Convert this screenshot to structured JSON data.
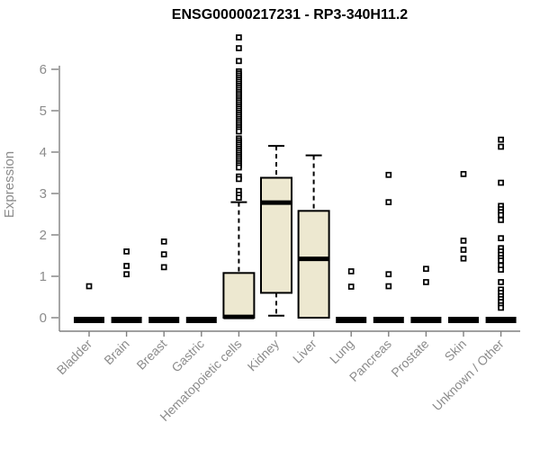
{
  "chart_data": {
    "type": "box",
    "title": "ENSG00000217231 - RP3-340H11.2",
    "ylabel": "Expression",
    "xlabel": "",
    "yticks": [
      0,
      1,
      2,
      3,
      4,
      5,
      6
    ],
    "ylim": [
      0,
      6.9
    ],
    "grid": false,
    "legend": "none",
    "colors": {
      "box_fill": "#ede8d0",
      "box_stroke": "#000000",
      "median": "#000000",
      "outlier_stroke": "#000000",
      "outlier_fill": "#ffffff",
      "axis": "#808080",
      "tick_text": "#8c8c8c",
      "title_text": "#000000"
    },
    "categories": [
      "Bladder",
      "Brain",
      "Breast",
      "Gastric",
      "Hematopoietic cells",
      "Kidney",
      "Liver",
      "Lung",
      "Pancreas",
      "Prostate",
      "Skin",
      "Unknown / Other"
    ],
    "boxes": [
      {
        "category": "Bladder",
        "q1": 0,
        "median": 0,
        "q3": 0,
        "whisker_low": 0,
        "whisker_high": 0,
        "outliers": [
          0.76
        ]
      },
      {
        "category": "Brain",
        "q1": 0,
        "median": 0,
        "q3": 0,
        "whisker_low": 0,
        "whisker_high": 0,
        "outliers": [
          1.6,
          1.25,
          1.05
        ]
      },
      {
        "category": "Breast",
        "q1": 0,
        "median": 0,
        "q3": 0,
        "whisker_low": 0,
        "whisker_high": 0,
        "outliers": [
          1.84,
          1.53,
          1.22
        ]
      },
      {
        "category": "Gastric",
        "q1": 0,
        "median": 0,
        "q3": 0,
        "whisker_low": 0,
        "whisker_high": 0,
        "outliers": []
      },
      {
        "category": "Hematopoietic cells",
        "q1": 0,
        "median": 0.02,
        "q3": 1.08,
        "whisker_low": 0,
        "whisker_high": 2.79,
        "outliers": [
          6.77,
          6.51,
          6.2,
          5.95,
          5.9,
          5.85,
          5.8,
          5.75,
          5.7,
          5.65,
          5.6,
          5.55,
          5.5,
          5.45,
          5.4,
          5.35,
          5.3,
          5.25,
          5.2,
          5.15,
          5.1,
          5.05,
          5.0,
          4.95,
          4.9,
          4.85,
          4.8,
          4.75,
          4.7,
          4.65,
          4.6,
          4.55,
          4.5,
          4.33,
          4.28,
          4.23,
          4.18,
          4.13,
          4.08,
          4.03,
          3.98,
          3.93,
          3.88,
          3.83,
          3.78,
          3.73,
          3.68,
          3.63,
          3.41,
          3.35,
          3.06,
          2.97,
          2.9
        ]
      },
      {
        "category": "Kidney",
        "q1": 0.6,
        "median": 2.78,
        "q3": 3.38,
        "whisker_low": 0.05,
        "whisker_high": 4.15,
        "outliers": []
      },
      {
        "category": "Liver",
        "q1": 0,
        "median": 1.42,
        "q3": 2.58,
        "whisker_low": 0,
        "whisker_high": 3.92,
        "outliers": []
      },
      {
        "category": "Lung",
        "q1": 0,
        "median": 0,
        "q3": 0,
        "whisker_low": 0,
        "whisker_high": 0,
        "outliers": [
          1.12,
          0.75
        ]
      },
      {
        "category": "Pancreas",
        "q1": 0,
        "median": 0,
        "q3": 0,
        "whisker_low": 0,
        "whisker_high": 0,
        "outliers": [
          3.45,
          2.79,
          1.05,
          0.76
        ]
      },
      {
        "category": "Prostate",
        "q1": 0,
        "median": 0,
        "q3": 0,
        "whisker_low": 0,
        "whisker_high": 0,
        "outliers": [
          1.18,
          0.86
        ]
      },
      {
        "category": "Skin",
        "q1": 0,
        "median": 0,
        "q3": 0,
        "whisker_low": 0,
        "whisker_high": 0,
        "outliers": [
          3.47,
          1.86,
          1.64,
          1.43
        ]
      },
      {
        "category": "Unknown / Other",
        "q1": 0,
        "median": 0,
        "q3": 0,
        "whisker_low": 0,
        "whisker_high": 0,
        "outliers": [
          4.3,
          4.13,
          3.26,
          2.7,
          2.62,
          2.55,
          2.48,
          2.36,
          1.92,
          1.68,
          1.6,
          1.52,
          1.44,
          1.38,
          1.26,
          1.16,
          0.86,
          0.68,
          0.6,
          0.52,
          0.45,
          0.38,
          0.3,
          0.24
        ]
      }
    ]
  }
}
